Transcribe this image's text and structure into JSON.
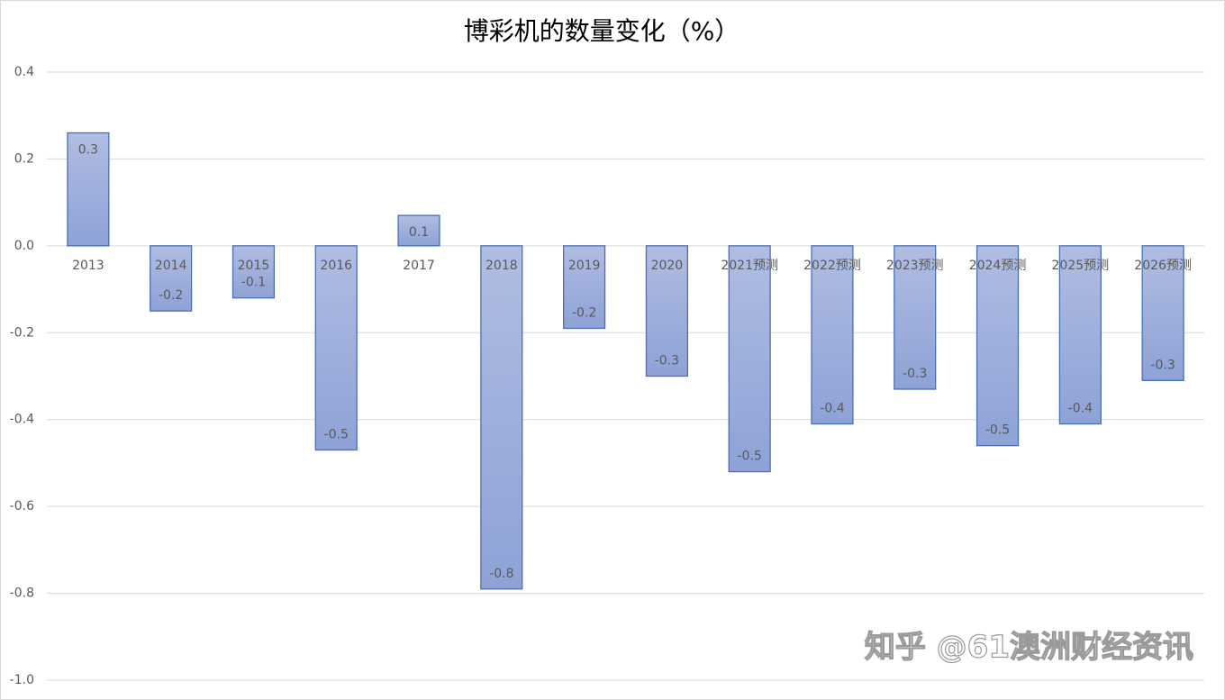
{
  "chart_data": {
    "type": "bar",
    "title": "博彩机的数量变化（%）",
    "categories": [
      "2013",
      "2014",
      "2015",
      "2016",
      "2017",
      "2018",
      "2019",
      "2020",
      "2021预测",
      "2022预测",
      "2023预测",
      "2024预测",
      "2025预测",
      "2026预测"
    ],
    "values": [
      0.26,
      -0.15,
      -0.12,
      -0.47,
      0.07,
      -0.79,
      -0.19,
      -0.3,
      -0.52,
      -0.41,
      -0.33,
      -0.46,
      -0.41,
      -0.31
    ],
    "value_labels": [
      "0.3",
      "-0.2",
      "-0.1",
      "-0.5",
      "0.1",
      "-0.8",
      "-0.2",
      "-0.3",
      "-0.5",
      "-0.4",
      "-0.3",
      "-0.5",
      "-0.4",
      "-0.3"
    ],
    "color": "#4a6fb5",
    "ylim": [
      -1.0,
      0.4
    ],
    "yticks": [
      0.4,
      0.2,
      {
        "value": 0,
        "label": "0.0"
      },
      -0.2,
      -0.4,
      -0.6,
      -0.8,
      {
        "value": -1.0,
        "label": "-1.0"
      }
    ],
    "grid": true,
    "watermark": "知乎 @61澳洲财经资讯"
  }
}
